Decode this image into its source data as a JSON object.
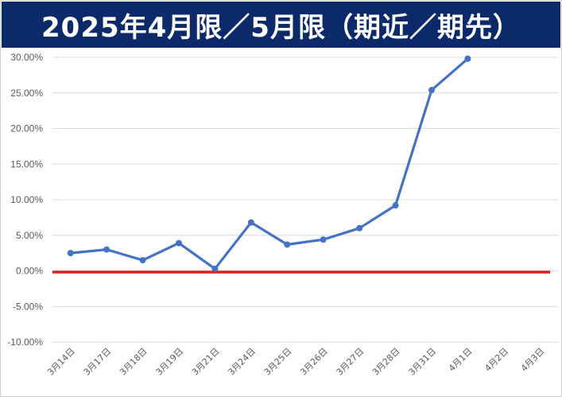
{
  "chart_data": {
    "type": "line",
    "title": "2025年4月限／5月限（期近／期先）",
    "categories": [
      "3月14日",
      "3月17日",
      "3月18日",
      "3月19日",
      "3月21日",
      "3月24日",
      "3月25日",
      "3月26日",
      "3月27日",
      "3月28日",
      "3月31日",
      "4月1日",
      "4月2日",
      "4月3日"
    ],
    "series": [
      {
        "values": [
          2.5,
          3.0,
          1.5,
          3.9,
          0.3,
          6.8,
          3.7,
          4.4,
          6.0,
          9.2,
          25.4,
          29.8,
          null,
          null
        ]
      }
    ],
    "y_ticks": [
      "30.00%",
      "25.00%",
      "20.00%",
      "15.00%",
      "10.00%",
      "5.00%",
      "0.00%",
      "-5.00%",
      "-10.00%"
    ],
    "ylim": [
      -10,
      30
    ],
    "y_unit": "%",
    "reference_line": {
      "value": 0
    },
    "grid": true,
    "legend": "none",
    "colors": {
      "title_bg": "#0c2a6a",
      "title_text": "#ffffff",
      "line": "#4472c4",
      "reference_line": "#e02020",
      "grid": "#d9d9d9"
    }
  }
}
